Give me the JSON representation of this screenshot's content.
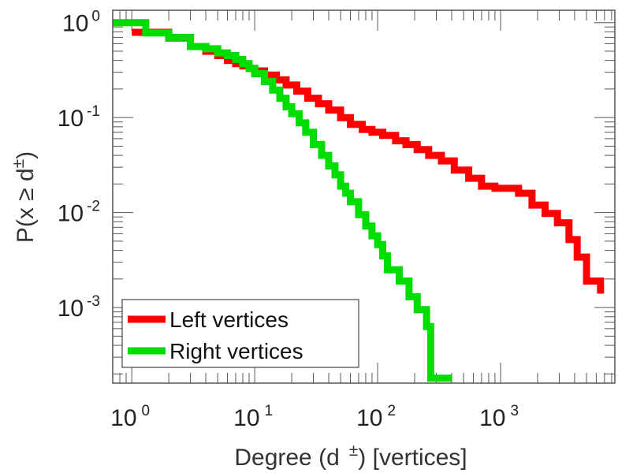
{
  "chart_data": {
    "type": "line",
    "step": true,
    "xscale": "log",
    "yscale": "log",
    "xlim": [
      0.7,
      8500
    ],
    "ylim": [
      0.00016,
      1.35
    ],
    "xlabel": "Degree (d ±) [vertices]",
    "xlabel_parts": {
      "before": "Degree (d",
      "sup": "±",
      "after": ") [vertices]"
    },
    "ylabel": "P(x ≥ d±)",
    "ylabel_parts": {
      "before": "P(x ≥ d",
      "sup": "±",
      "after": ")"
    },
    "x_ticks": [
      {
        "base": "10",
        "exp": "0",
        "value": 1
      },
      {
        "base": "10",
        "exp": "1",
        "value": 10
      },
      {
        "base": "10",
        "exp": "2",
        "value": 100
      },
      {
        "base": "10",
        "exp": "3",
        "value": 1000
      }
    ],
    "y_ticks": [
      {
        "base": "10",
        "exp": "0",
        "value": 1
      },
      {
        "base": "10",
        "exp": "-1",
        "value": 0.1
      },
      {
        "base": "10",
        "exp": "-2",
        "value": 0.01
      },
      {
        "base": "10",
        "exp": "-3",
        "value": 0.001
      }
    ],
    "grid": false,
    "legend_position": "lower-left",
    "series": [
      {
        "name": "Left vertices",
        "color": "#ff0000",
        "x": [
          1,
          2,
          3,
          4,
          5,
          6,
          7,
          8,
          9,
          10,
          12,
          15,
          18,
          22,
          27,
          33,
          40,
          50,
          60,
          75,
          90,
          110,
          140,
          170,
          210,
          260,
          330,
          420,
          550,
          700,
          900,
          1100,
          1400,
          1800,
          2300,
          2900,
          3500,
          3600,
          4200,
          5000,
          6500
        ],
        "y": [
          0.79,
          0.69,
          0.56,
          0.5,
          0.45,
          0.4,
          0.37,
          0.35,
          0.33,
          0.31,
          0.28,
          0.25,
          0.22,
          0.19,
          0.16,
          0.14,
          0.12,
          0.1,
          0.085,
          0.075,
          0.07,
          0.065,
          0.057,
          0.052,
          0.046,
          0.04,
          0.035,
          0.028,
          0.023,
          0.019,
          0.018,
          0.018,
          0.016,
          0.012,
          0.0098,
          0.0078,
          0.0078,
          0.0052,
          0.0034,
          0.0019,
          0.0014
        ]
      },
      {
        "name": "Right vertices",
        "color": "#00dd00",
        "x": [
          0.7,
          1,
          1.3,
          2,
          3,
          4,
          5,
          6,
          7,
          8,
          9,
          10,
          12,
          14,
          16,
          18,
          20,
          23,
          26,
          30,
          35,
          40,
          45,
          50,
          55,
          60,
          70,
          80,
          90,
          100,
          110,
          120,
          150,
          180,
          210,
          250,
          270,
          400
        ],
        "y": [
          1,
          1,
          0.78,
          0.7,
          0.56,
          0.53,
          0.48,
          0.45,
          0.41,
          0.37,
          0.33,
          0.29,
          0.24,
          0.195,
          0.16,
          0.13,
          0.11,
          0.088,
          0.07,
          0.052,
          0.04,
          0.031,
          0.025,
          0.019,
          0.016,
          0.013,
          0.0095,
          0.0072,
          0.0057,
          0.0046,
          0.0035,
          0.0025,
          0.0019,
          0.0013,
          0.00095,
          0.00063,
          0.00018,
          0.00018
        ]
      }
    ]
  }
}
